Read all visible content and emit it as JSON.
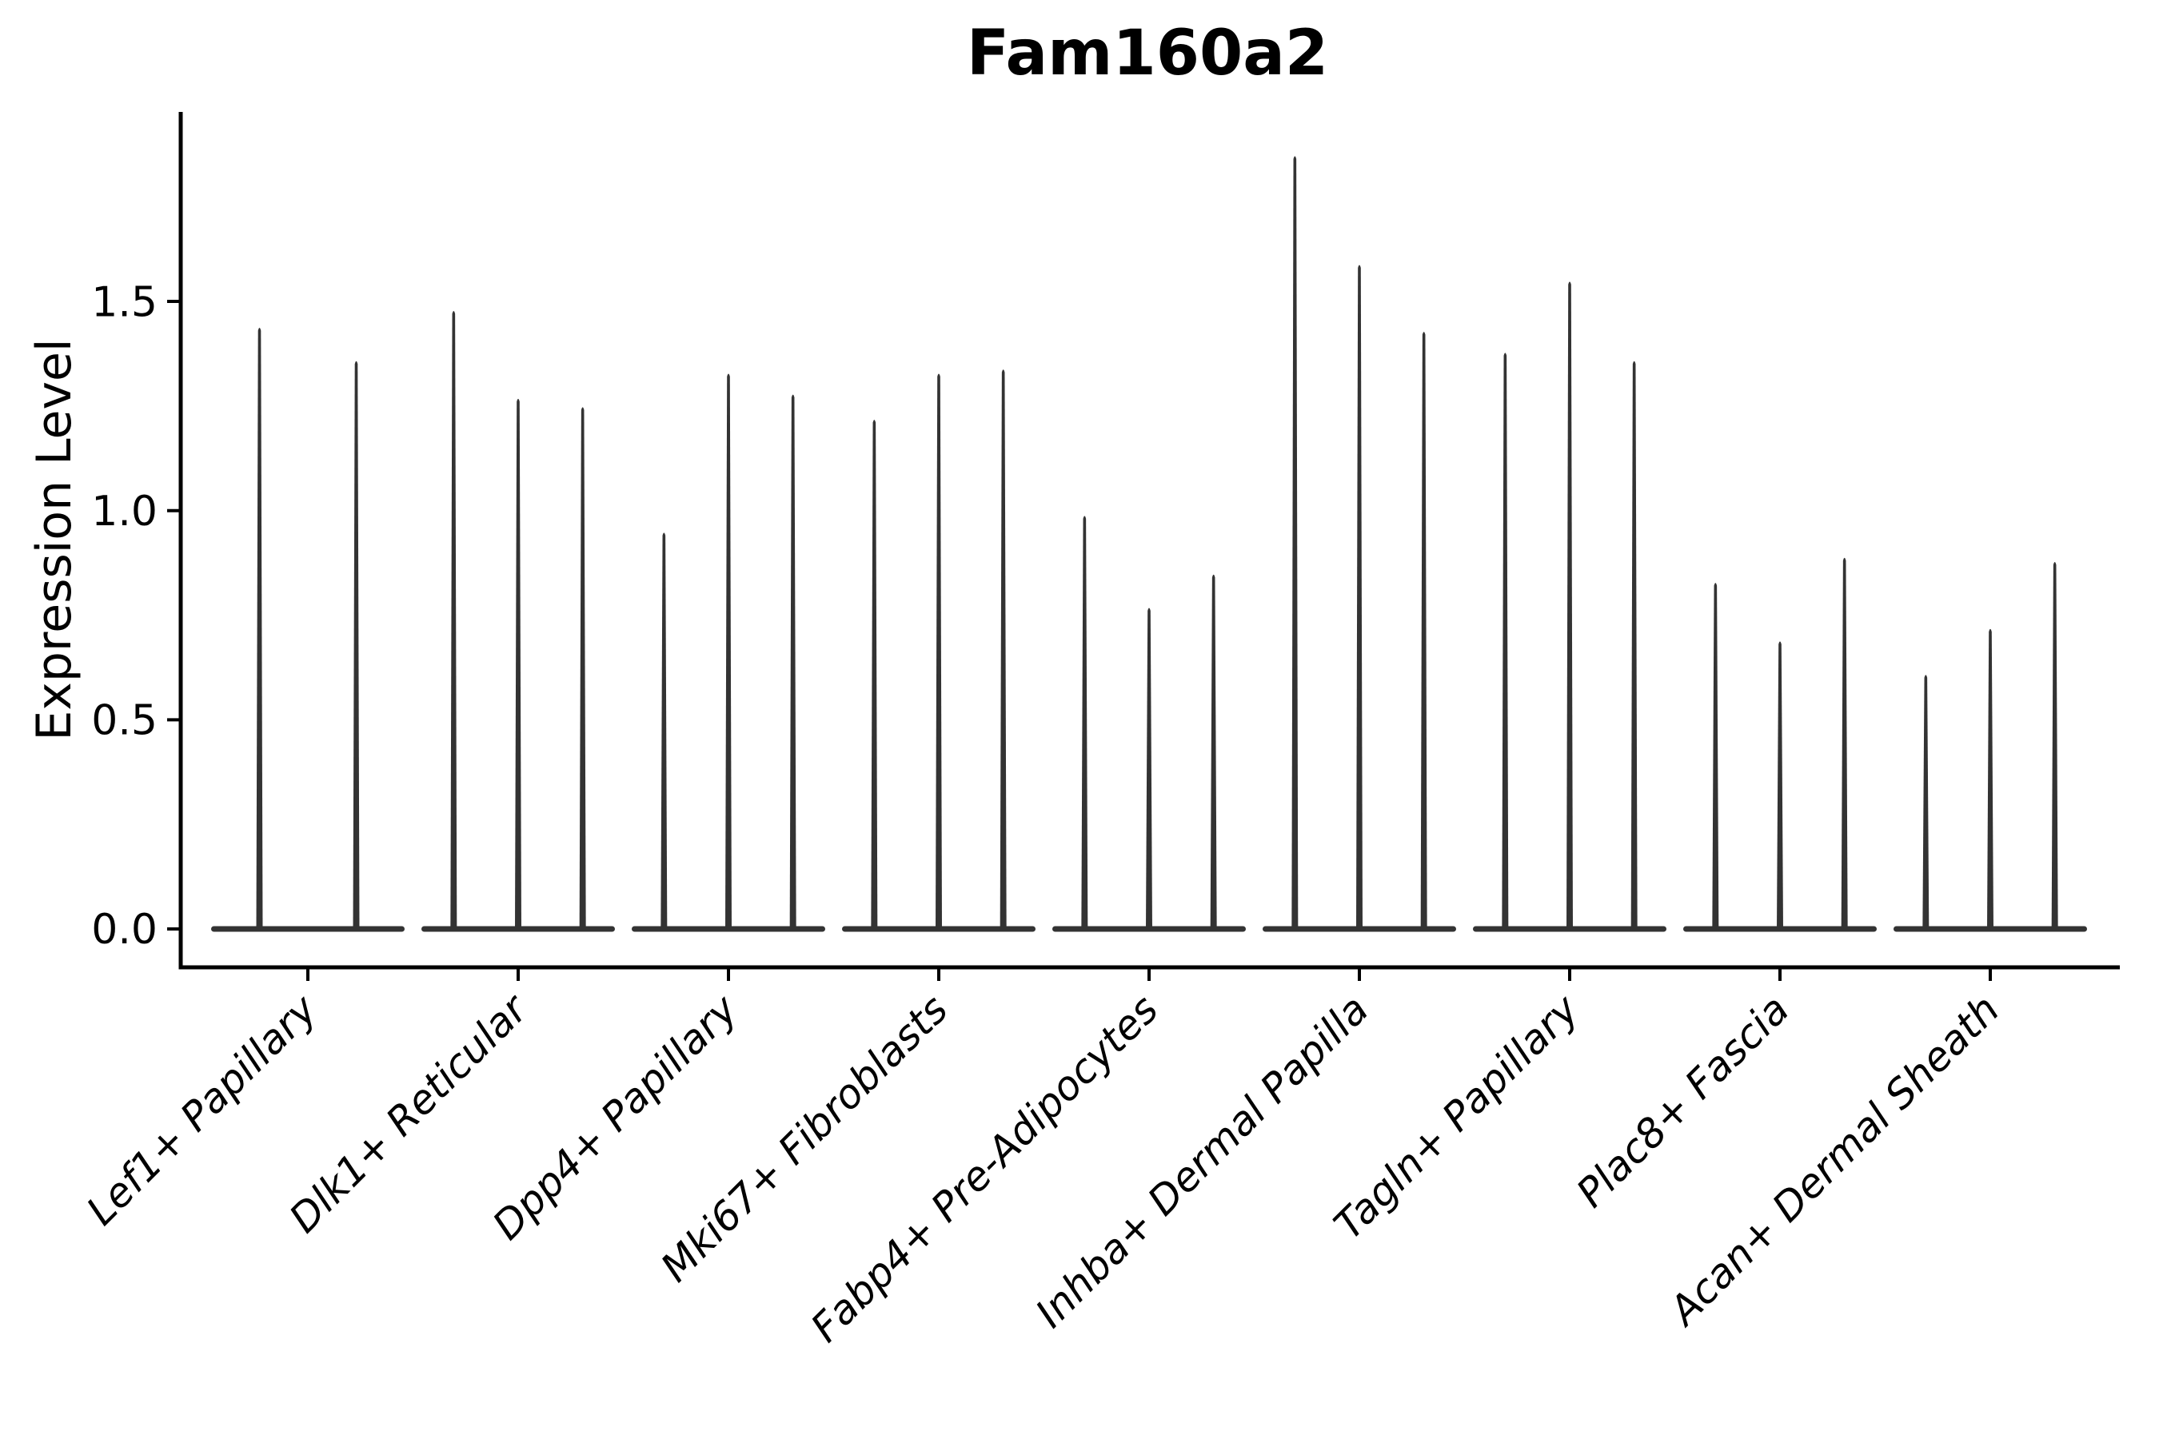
{
  "chart_data": {
    "type": "violin",
    "title": "Fam160a2",
    "ylabel": "Expression Level",
    "xlabel": "",
    "grid": false,
    "legend": false,
    "ylim": [
      -0.09,
      1.95
    ],
    "yticks": [
      0.0,
      0.5,
      1.0,
      1.5
    ],
    "ytick_labels": [
      "0.0",
      "0.5",
      "1.0",
      "1.5"
    ],
    "categories": [
      "Lef1+ Papillary",
      "Dlk1+ Reticular",
      "Dpp4+ Papillary",
      "Mki67+ Fibroblasts",
      "Fabp4+ Pre-Adipocytes",
      "Inhba+ Dermal Papilla",
      "Tagln+ Papillary",
      "Plac8+ Fascia",
      "Acan+ Dermal Sheath"
    ],
    "groups": [
      {
        "label": "Lef1+ Papillary",
        "spike_maxima": [
          1.44,
          1.36
        ]
      },
      {
        "label": "Dlk1+ Reticular",
        "spike_maxima": [
          1.48,
          1.27,
          1.25
        ]
      },
      {
        "label": "Dpp4+ Papillary",
        "spike_maxima": [
          0.95,
          1.33,
          1.28
        ]
      },
      {
        "label": "Mki67+ Fibroblasts",
        "spike_maxima": [
          1.22,
          1.33,
          1.34
        ]
      },
      {
        "label": "Fabp4+ Pre-Adipocytes",
        "spike_maxima": [
          0.99,
          0.77,
          0.85
        ]
      },
      {
        "label": "Inhba+ Dermal Papilla",
        "spike_maxima": [
          1.85,
          1.59,
          1.43
        ]
      },
      {
        "label": "Tagln+ Papillary",
        "spike_maxima": [
          1.38,
          1.55,
          1.36
        ]
      },
      {
        "label": "Plac8+ Fascia",
        "spike_maxima": [
          0.83,
          0.69,
          0.89
        ]
      },
      {
        "label": "Acan+ Dermal Sheath",
        "spike_maxima": [
          0.61,
          0.72,
          0.88
        ]
      }
    ],
    "baseline_value": 0.0,
    "colors": {
      "violin": "#333333",
      "axis": "#000000",
      "text": "#000000"
    }
  }
}
